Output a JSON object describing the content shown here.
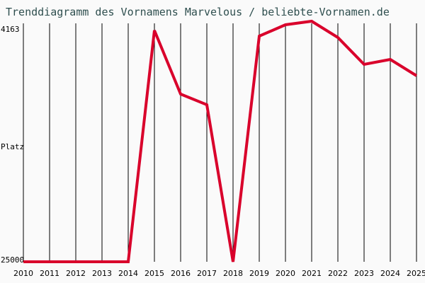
{
  "header": {
    "title": "Trenddiagramm des Vornamens Marvelous / beliebte-Vornamen.de"
  },
  "axis": {
    "y_top_label": "4163",
    "y_mid_label": "Platz",
    "y_bottom_label": "25000"
  },
  "colors": {
    "line": "#d9002b",
    "background": "#fafafa",
    "title": "#2f4f4f",
    "grid": "#000000"
  },
  "chart_data": {
    "type": "line",
    "title": "Trenddiagramm des Vornamens Marvelous / beliebte-Vornamen.de",
    "xlabel": "",
    "ylabel": "Platz",
    "ylim": [
      25000,
      4163
    ],
    "y_inverted": true,
    "grid": "vertical",
    "categories": [
      "2010",
      "2011",
      "2012",
      "2013",
      "2014",
      "2015",
      "2016",
      "2017",
      "2018",
      "2019",
      "2020",
      "2021",
      "2022",
      "2023",
      "2024",
      "2025"
    ],
    "series": [
      {
        "name": "Marvelous",
        "values": [
          25000,
          25000,
          25000,
          25000,
          25000,
          4960,
          10476,
          11396,
          25000,
          5450,
          4470,
          4163,
          5573,
          7902,
          7473,
          8883
        ]
      }
    ]
  }
}
